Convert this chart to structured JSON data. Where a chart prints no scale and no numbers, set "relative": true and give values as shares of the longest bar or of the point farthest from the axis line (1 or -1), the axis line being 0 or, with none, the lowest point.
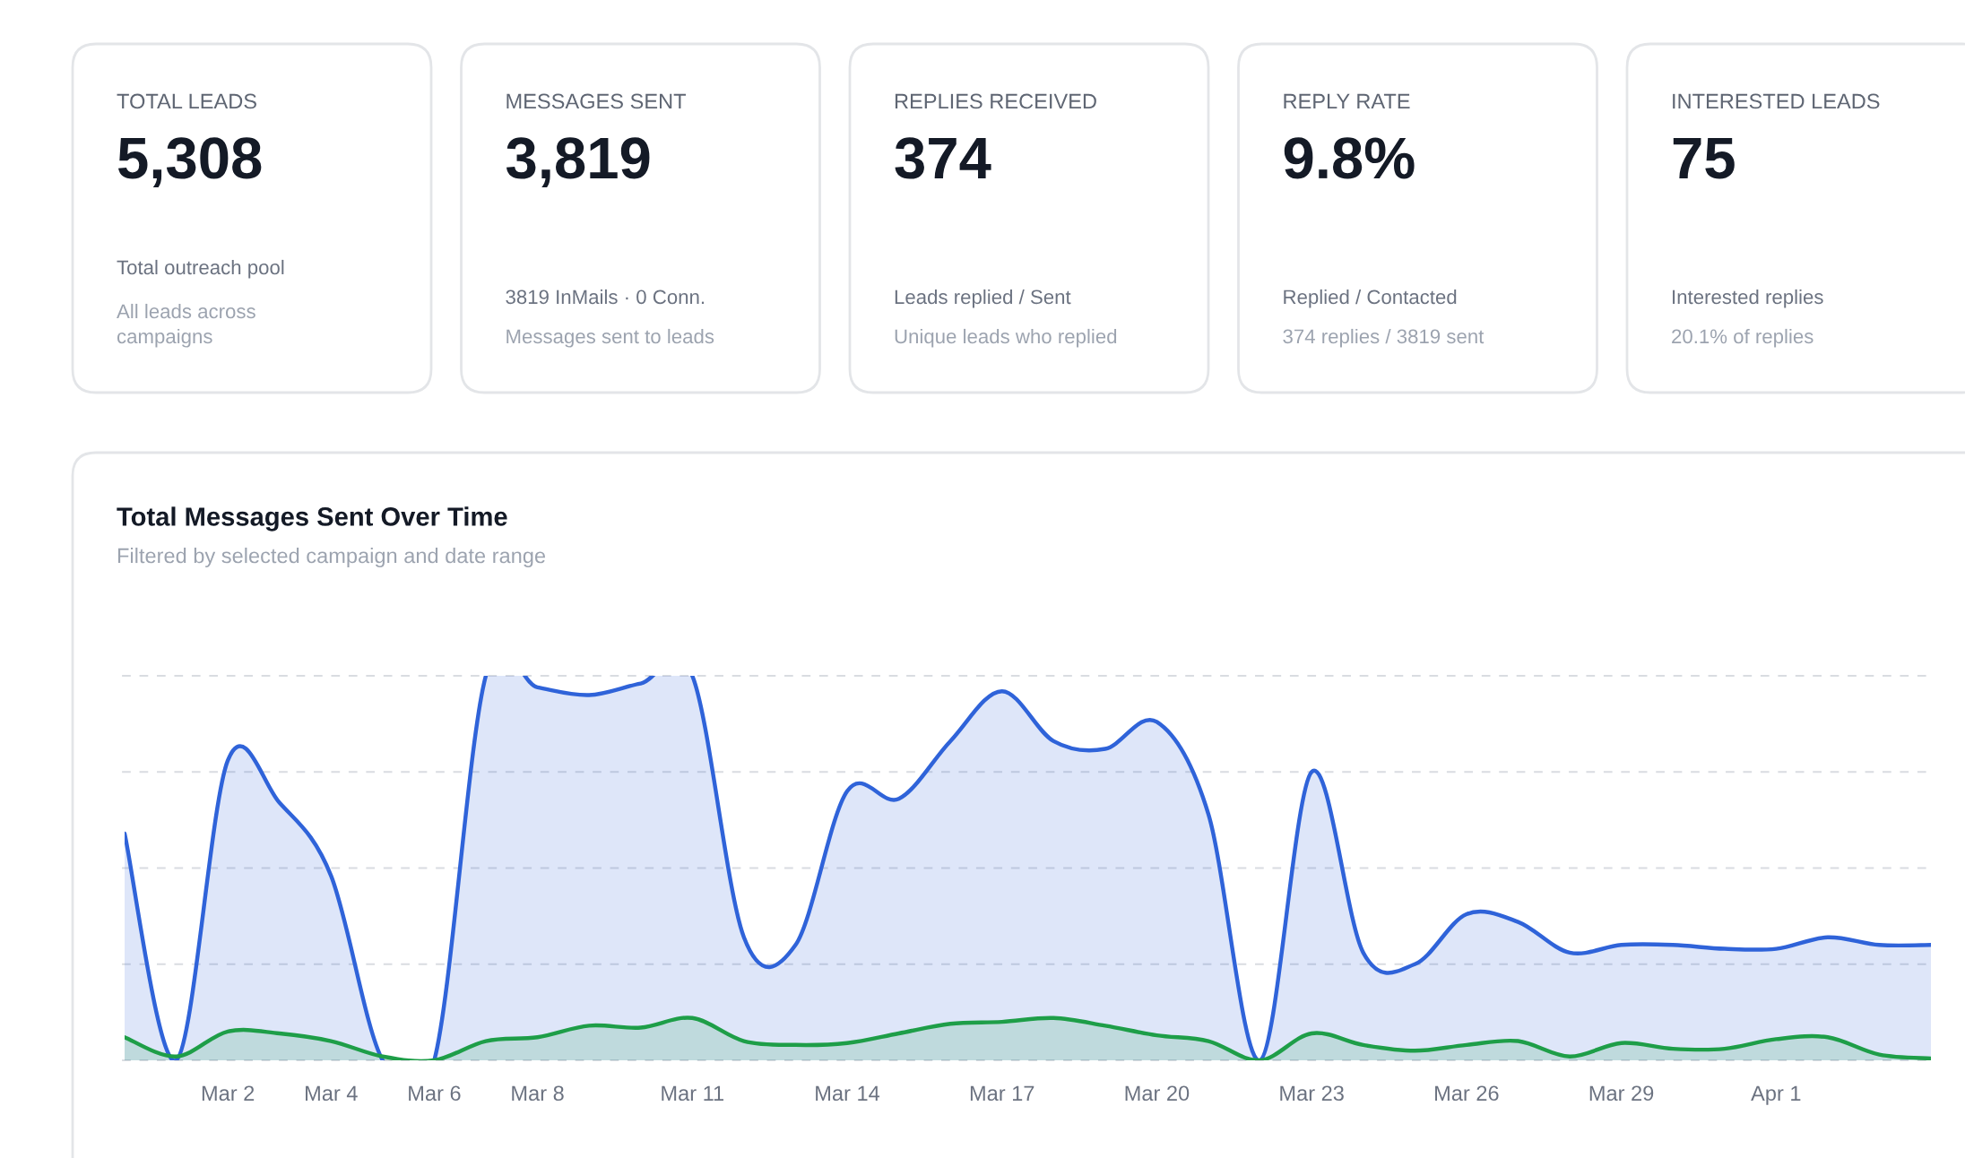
{
  "chart_data": [
    {
      "type": "other",
      "title": "TOTAL LEADS",
      "annotations": [
        "5,308",
        "Total outreach pool",
        "All leads across\ncampaigns"
      ]
    },
    {
      "type": "other",
      "title": "MESSAGES SENT",
      "annotations": [
        "3,819",
        "3819 InMails · 0 Conn.",
        "Messages sent to leads"
      ]
    },
    {
      "type": "other",
      "title": "REPLIES RECEIVED",
      "annotations": [
        "374",
        "Leads replied / Sent",
        "Unique leads who replied"
      ]
    },
    {
      "type": "other",
      "title": "REPLY RATE",
      "annotations": [
        "9.8%",
        "Replied / Contacted",
        "374 replies / 3819 sent"
      ]
    },
    {
      "type": "other",
      "title": "INTERESTED LEADS",
      "annotations": [
        "75",
        "Interested replies",
        "20.1% of replies"
      ]
    },
    {
      "type": "area",
      "title": "Total Messages Sent Over Time",
      "subtitle": "Filtered by selected campaign and date range",
      "categories": [
        null,
        null,
        "Mar 2",
        null,
        "Mar 4",
        null,
        "Mar 6",
        null,
        "Mar 8",
        null,
        null,
        "Mar 11",
        null,
        null,
        "Mar 14",
        null,
        null,
        "Mar 17",
        null,
        null,
        "Mar 20",
        null,
        null,
        "Mar 23",
        null,
        null,
        "Mar 26",
        null,
        null,
        "Mar 29",
        null,
        null,
        "Apr 1",
        null,
        null,
        null
      ],
      "relative": true,
      "grid": "y",
      "series": [
        {
          "color": "#2f63d9",
          "values": [
            0.59,
            0.0,
            0.78,
            0.67,
            0.48,
            0.0,
            0.0,
            1.0,
            0.97,
            0.95,
            0.98,
            1.0,
            0.32,
            0.3,
            0.7,
            0.68,
            0.83,
            0.96,
            0.83,
            0.81,
            0.88,
            0.64,
            0.0,
            0.75,
            0.28,
            0.25,
            0.38,
            0.36,
            0.28,
            0.3,
            0.3,
            0.29,
            0.29,
            0.32,
            0.3,
            0.3
          ]
        },
        {
          "color": "#1e9e48",
          "values": [
            0.06,
            0.01,
            0.075,
            0.07,
            0.05,
            0.01,
            0.0,
            0.05,
            0.06,
            0.09,
            0.085,
            0.11,
            0.05,
            0.04,
            0.045,
            0.07,
            0.095,
            0.1,
            0.11,
            0.09,
            0.065,
            0.05,
            0.0,
            0.07,
            0.04,
            0.025,
            0.04,
            0.05,
            0.01,
            0.045,
            0.03,
            0.03,
            0.055,
            0.06,
            0.015,
            0.005
          ]
        }
      ]
    }
  ]
}
